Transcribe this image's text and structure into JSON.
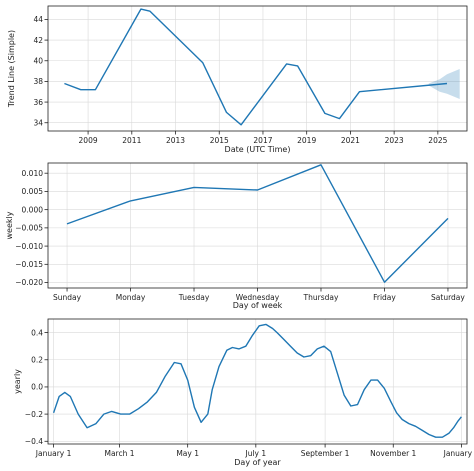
{
  "figure": {
    "background": "#ffffff"
  },
  "chart_data": [
    {
      "type": "line",
      "xlabel": "Date (UTC Time)",
      "ylabel": "Trend Line (Simple)",
      "x_scale": "time",
      "grid": true,
      "xlim": [
        "2007-03-01",
        "2026-05-01"
      ],
      "ylim": [
        33.2,
        45.3
      ],
      "x_ticks": [
        "2009",
        "2011",
        "2013",
        "2015",
        "2017",
        "2019",
        "2021",
        "2023",
        "2025"
      ],
      "y_ticks": [
        34,
        36,
        38,
        40,
        42,
        44
      ],
      "series": [
        {
          "color": "#1f77b4",
          "x": [
            "2007-12-01",
            "2008-09-01",
            "2009-05-01",
            "2011-06-01",
            "2011-11-01",
            "2014-04-01",
            "2015-05-01",
            "2016-01-01",
            "2018-02-01",
            "2018-08-01",
            "2019-11-01",
            "2020-07-01",
            "2021-06-01",
            "2025-06-01"
          ],
          "y": [
            37.8,
            37.2,
            37.2,
            45.0,
            44.8,
            39.8,
            35.0,
            33.8,
            39.7,
            39.5,
            34.9,
            34.4,
            37.0,
            37.8
          ]
        }
      ],
      "uncertainty": {
        "color": "#1f77b4",
        "x": [
          "2024-08-01",
          "2025-02-01",
          "2025-06-01",
          "2026-01-01"
        ],
        "lower": [
          37.6,
          37.0,
          36.8,
          36.3
        ],
        "upper": [
          37.8,
          38.2,
          38.7,
          39.2
        ]
      }
    },
    {
      "type": "line",
      "xlabel": "Day of week",
      "ylabel": "weekly",
      "grid": true,
      "categories": [
        "Sunday",
        "Monday",
        "Tuesday",
        "Wednesday",
        "Thursday",
        "Friday",
        "Saturday"
      ],
      "ylim": [
        -0.0215,
        0.0128
      ],
      "y_ticks": [
        -0.02,
        -0.015,
        -0.01,
        -0.005,
        0.0,
        0.005,
        0.01
      ],
      "y_tick_labels": [
        "−0.020",
        "−0.015",
        "−0.010",
        "−0.005",
        "0.000",
        "0.005",
        "0.010"
      ],
      "series": [
        {
          "color": "#1f77b4",
          "values": [
            -0.0039,
            0.0024,
            0.0061,
            0.0054,
            0.0123,
            -0.0199,
            -0.0024
          ]
        }
      ]
    },
    {
      "type": "line",
      "xlabel": "Day of year",
      "ylabel": "yearly",
      "grid": true,
      "xlim": [
        -5,
        370
      ],
      "ylim": [
        -0.42,
        0.5
      ],
      "x_ticks": [
        0,
        59,
        120,
        181,
        243,
        304,
        365
      ],
      "x_tick_labels": [
        "January 1",
        "March 1",
        "May 1",
        "July 1",
        "September 1",
        "November 1",
        "January 1"
      ],
      "y_ticks": [
        -0.4,
        -0.2,
        0.0,
        0.2,
        0.4
      ],
      "y_tick_labels": [
        "−0.4",
        "−0.2",
        "0.0",
        "0.2",
        "0.4"
      ],
      "series": [
        {
          "color": "#1f77b4",
          "x": [
            0,
            5,
            10,
            15,
            22,
            30,
            38,
            45,
            52,
            60,
            68,
            76,
            84,
            92,
            100,
            108,
            114,
            120,
            126,
            132,
            138,
            142,
            148,
            155,
            160,
            166,
            172,
            178,
            184,
            190,
            196,
            200,
            206,
            212,
            218,
            224,
            230,
            236,
            242,
            248,
            254,
            260,
            266,
            272,
            278,
            284,
            290,
            296,
            302,
            307,
            312,
            318,
            324,
            330,
            336,
            342,
            348,
            354,
            358,
            362,
            365
          ],
          "y": [
            -0.19,
            -0.07,
            -0.04,
            -0.07,
            -0.2,
            -0.3,
            -0.27,
            -0.2,
            -0.18,
            -0.2,
            -0.2,
            -0.16,
            -0.11,
            -0.04,
            0.08,
            0.18,
            0.17,
            0.05,
            -0.15,
            -0.26,
            -0.2,
            -0.02,
            0.15,
            0.27,
            0.29,
            0.28,
            0.3,
            0.38,
            0.45,
            0.46,
            0.43,
            0.4,
            0.35,
            0.3,
            0.25,
            0.22,
            0.23,
            0.28,
            0.3,
            0.26,
            0.1,
            -0.06,
            -0.14,
            -0.13,
            -0.02,
            0.05,
            0.05,
            -0.01,
            -0.11,
            -0.19,
            -0.24,
            -0.27,
            -0.29,
            -0.32,
            -0.35,
            -0.37,
            -0.37,
            -0.34,
            -0.3,
            -0.25,
            -0.22
          ]
        }
      ]
    }
  ]
}
